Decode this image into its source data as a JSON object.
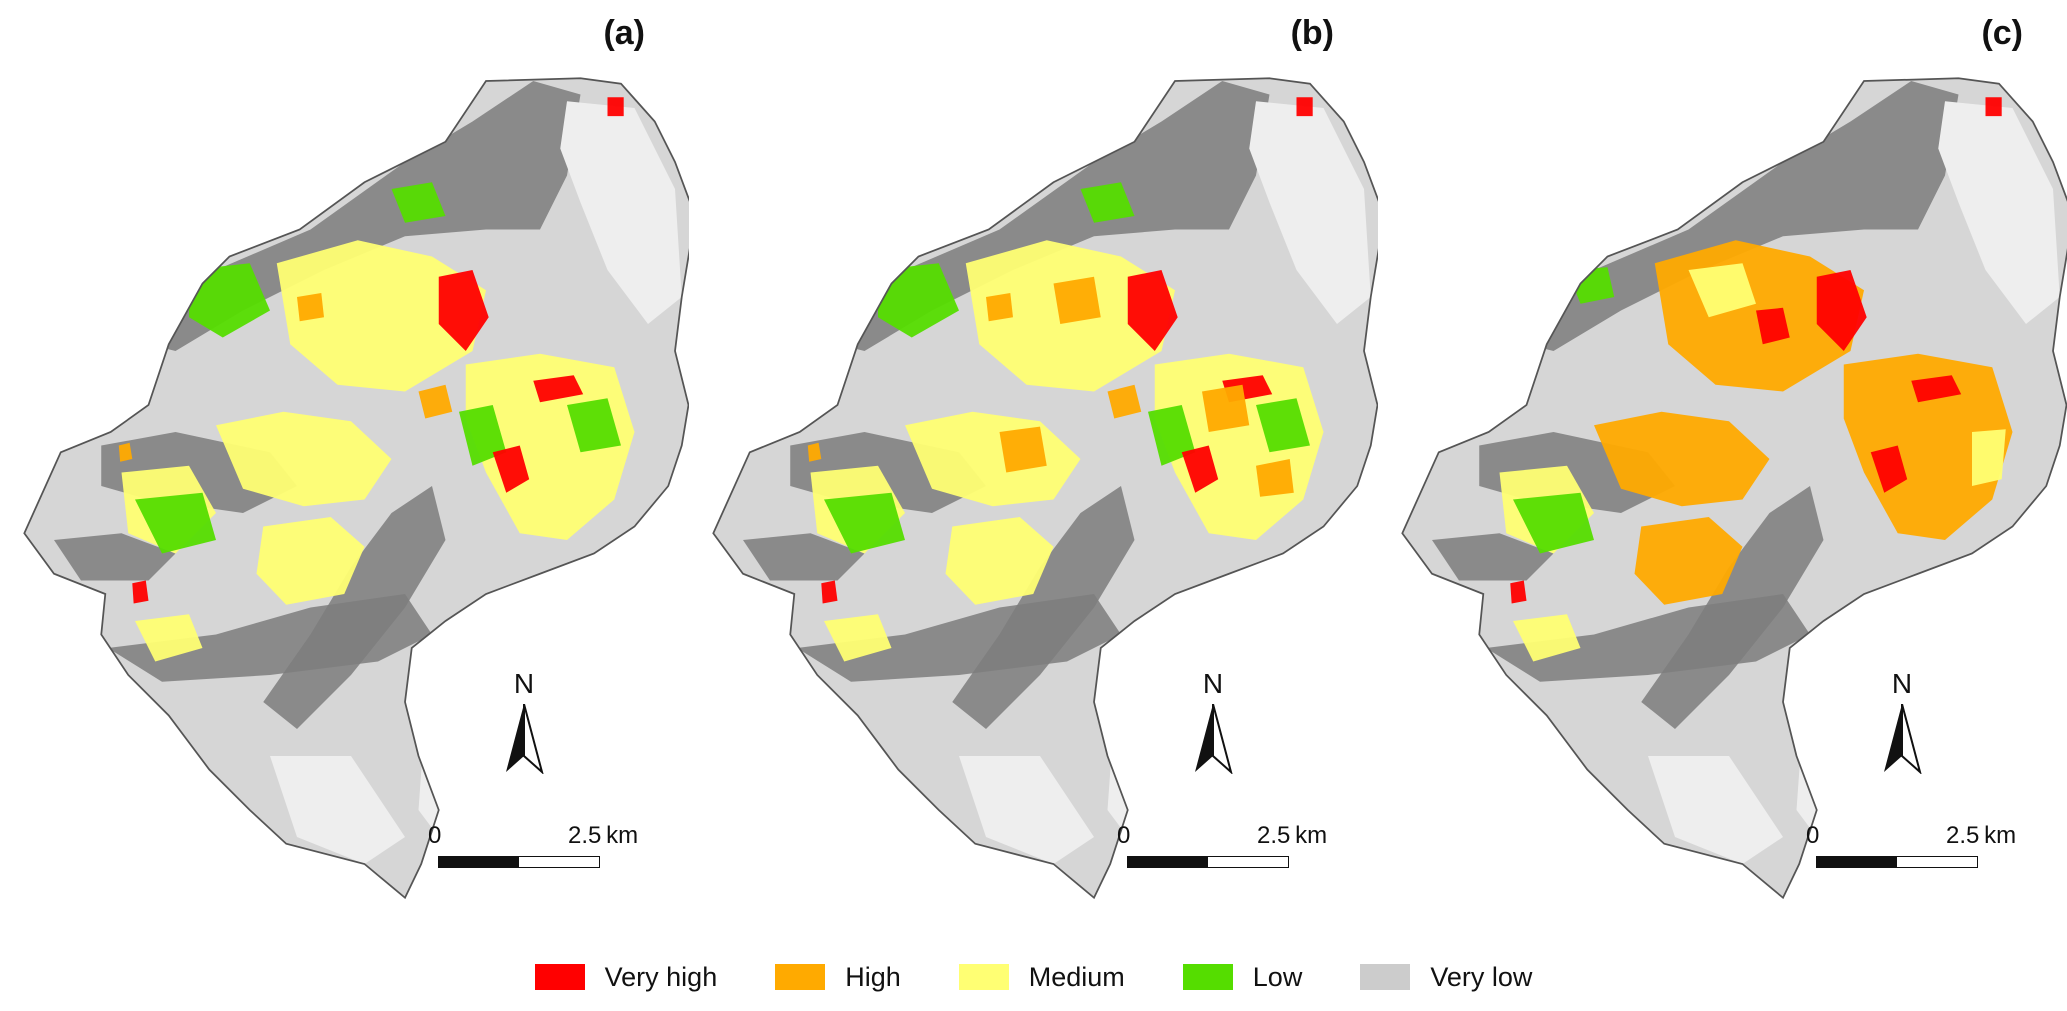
{
  "panels": [
    {
      "label": "(a)",
      "mode": "a"
    },
    {
      "label": "(b)",
      "mode": "b"
    },
    {
      "label": "(c)",
      "mode": "c"
    }
  ],
  "north_arrow": {
    "letter": "N"
  },
  "scale_bar": {
    "zero_label": "0",
    "max_label": "2.5 km"
  },
  "legend": {
    "items": [
      {
        "label": "Very high",
        "color": "#ff0000"
      },
      {
        "label": "High",
        "color": "#ffaa00"
      },
      {
        "label": "Medium",
        "color": "#ffff73"
      },
      {
        "label": "Low",
        "color": "#55dd00"
      },
      {
        "label": "Very low",
        "color": "#cccccc"
      }
    ]
  }
}
